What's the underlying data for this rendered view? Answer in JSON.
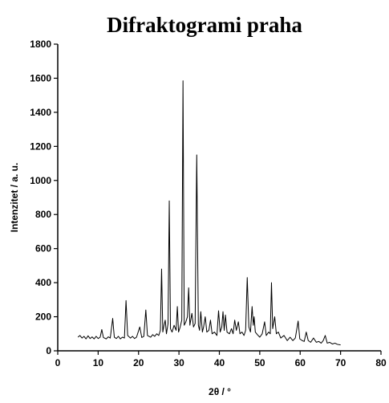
{
  "chart_data": {
    "type": "line",
    "title": "Difraktogrami praha",
    "x_label": "2θ / °",
    "y_label": "Intenzitet / a. u.",
    "xlim": [
      0,
      80
    ],
    "xticks": [
      0,
      10,
      20,
      30,
      40,
      50,
      60,
      70,
      80
    ],
    "ylim": [
      0,
      1800
    ],
    "yticks": [
      0,
      200,
      400,
      600,
      800,
      1000,
      1200,
      1400,
      1600,
      1800
    ],
    "color": "#000000",
    "x": [
      5,
      5.5,
      6,
      6.5,
      7,
      7.5,
      8,
      8.5,
      9,
      9.5,
      10,
      10.5,
      10.9,
      11.3,
      12,
      12.5,
      13,
      13.6,
      14,
      14.5,
      15,
      15.5,
      16,
      16.5,
      16.9,
      17.3,
      18,
      18.5,
      19,
      19.5,
      20.3,
      20.8,
      21.3,
      21.8,
      22.2,
      23,
      23.5,
      24,
      24.5,
      25,
      25.4,
      25.7,
      26,
      26.3,
      26.6,
      26.9,
      27.3,
      27.6,
      27.9,
      28.3,
      28.8,
      29.3,
      29.6,
      29.9,
      30.3,
      30.7,
      31.0,
      31.3,
      31.7,
      32.1,
      32.4,
      32.7,
      33.2,
      33.6,
      34.0,
      34.4,
      34.8,
      35.1,
      35.4,
      35.8,
      36.1,
      36.5,
      36.9,
      37.4,
      37.8,
      38.2,
      38.8,
      39.4,
      39.8,
      40.2,
      40.6,
      40.9,
      41.2,
      41.5,
      41.9,
      42.5,
      43.0,
      43.4,
      43.8,
      44.2,
      44.7,
      45.1,
      45.6,
      46.1,
      46.5,
      46.9,
      47.3,
      47.7,
      48.1,
      48.4,
      48.6,
      48.9,
      49.4,
      50,
      50.6,
      51.2,
      51.6,
      52.2,
      52.6,
      52.9,
      53.2,
      53.7,
      54.1,
      54.6,
      55.2,
      56,
      56.8,
      57.5,
      58.2,
      58.8,
      59.5,
      59.9,
      60.5,
      61,
      61.5,
      62,
      62.6,
      63.3,
      64,
      64.6,
      65.2,
      65.7,
      66.2,
      66.7,
      67.3,
      68,
      68.6,
      69.2,
      70
    ],
    "values": [
      80,
      90,
      75,
      85,
      70,
      88,
      72,
      82,
      70,
      85,
      72,
      80,
      125,
      78,
      70,
      82,
      75,
      190,
      80,
      72,
      85,
      70,
      80,
      75,
      295,
      90,
      75,
      85,
      72,
      80,
      140,
      78,
      85,
      240,
      90,
      80,
      95,
      85,
      100,
      90,
      120,
      480,
      110,
      150,
      180,
      100,
      160,
      880,
      130,
      110,
      150,
      120,
      260,
      110,
      140,
      180,
      1585,
      150,
      170,
      200,
      370,
      150,
      220,
      140,
      160,
      1150,
      150,
      120,
      230,
      110,
      140,
      200,
      110,
      120,
      180,
      100,
      110,
      90,
      235,
      110,
      140,
      230,
      120,
      210,
      110,
      100,
      130,
      100,
      180,
      120,
      170,
      100,
      110,
      90,
      120,
      430,
      140,
      110,
      260,
      150,
      200,
      110,
      95,
      80,
      100,
      170,
      90,
      110,
      100,
      400,
      130,
      200,
      100,
      110,
      75,
      90,
      60,
      80,
      60,
      75,
      175,
      70,
      60,
      55,
      110,
      60,
      50,
      75,
      50,
      55,
      45,
      60,
      90,
      45,
      50,
      40,
      45,
      38,
      35
    ]
  }
}
